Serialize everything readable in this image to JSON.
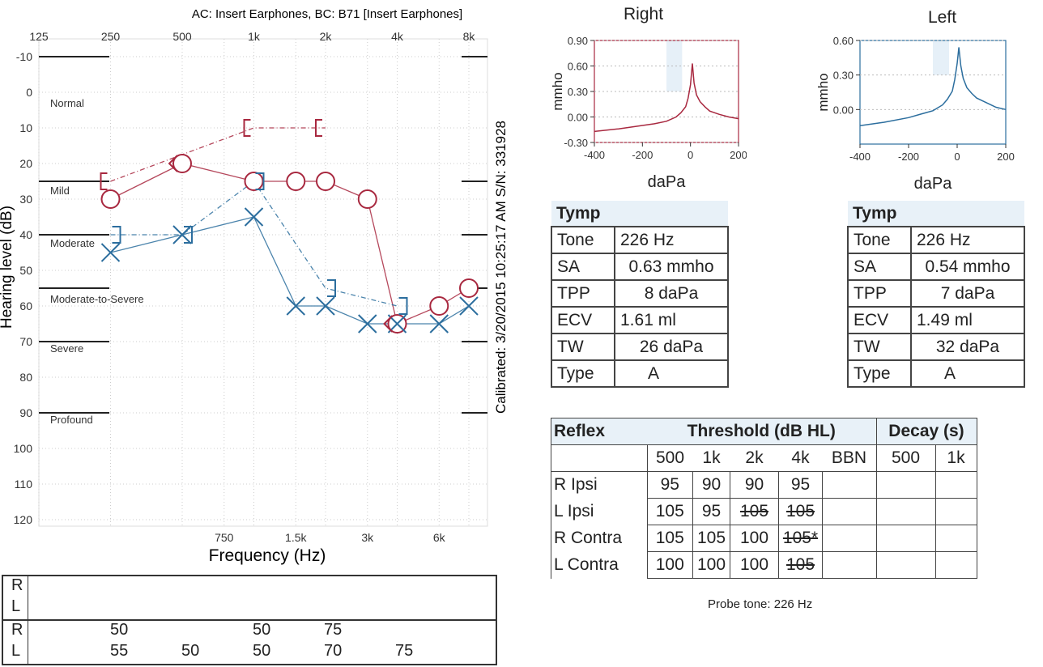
{
  "audiogram": {
    "header": "AC: Insert Earphones, BC: B71 [Insert Earphones]",
    "side_text": "Calibrated: 3/20/2015 10:25:17 AM  S/N: 331928",
    "ylabel": "Hearing level (dB)",
    "xlabel": "Frequency (Hz)",
    "top_ticks": [
      "125",
      "250",
      "500",
      "1k",
      "2k",
      "4k",
      "8k"
    ],
    "bottom_ticks": [
      "750",
      "1.5k",
      "3k",
      "6k"
    ],
    "y_ticks": [
      "-10",
      "0",
      "10",
      "20",
      "30",
      "40",
      "50",
      "60",
      "70",
      "80",
      "90",
      "100",
      "110",
      "120"
    ],
    "categories": [
      "Normal",
      "Mild",
      "Moderate",
      "Moderate-to-Severe",
      "Severe",
      "Profound"
    ],
    "colors": {
      "right": "#a8283f",
      "left": "#2c6e9e"
    }
  },
  "chart_data": [
    {
      "type": "line",
      "title": "",
      "xlabel": "Frequency (Hz)",
      "ylabel": "Hearing level (dB)",
      "x_scale": "log",
      "ylim": [
        120,
        -10
      ],
      "series": [
        {
          "name": "",
          "symbol": "circle",
          "ear": "right",
          "x": [
            250,
            500,
            1000,
            1500,
            2000,
            3000,
            4000,
            6000,
            8000
          ],
          "y": [
            30,
            20,
            25,
            25,
            25,
            30,
            65,
            60,
            55
          ]
        },
        {
          "name": "",
          "symbol": "cross",
          "ear": "left",
          "x": [
            250,
            500,
            1000,
            1500,
            2000,
            3000,
            4000,
            6000,
            8000
          ],
          "y": [
            45,
            40,
            35,
            60,
            60,
            65,
            65,
            65,
            60
          ]
        },
        {
          "name": "",
          "symbol": "right-bracket",
          "ear": "right",
          "x": [
            250,
            1000,
            2000
          ],
          "y": [
            25,
            10,
            10
          ]
        },
        {
          "name": "",
          "symbol": "left-bracket",
          "ear": "left",
          "x": [
            250,
            500,
            1000,
            2000,
            4000
          ],
          "y": [
            40,
            40,
            25,
            55,
            60
          ]
        },
        {
          "name": "",
          "symbol": "right-arrow",
          "ear": "right",
          "x": [
            500,
            4000
          ],
          "y": [
            20,
            65
          ]
        }
      ]
    },
    {
      "type": "line",
      "title": "Right",
      "xlabel": "daPa",
      "ylabel": "mmho",
      "xlim": [
        -400,
        200
      ],
      "ylim": [
        -0.3,
        0.9
      ],
      "x_ticks": [
        "-400",
        "-200",
        "0",
        "200"
      ],
      "y_ticks": [
        "0.90",
        "0.60",
        "0.30",
        "0.00",
        "-0.30"
      ],
      "series": [
        {
          "name": "",
          "x": [
            -400,
            -300,
            -200,
            -150,
            -100,
            -60,
            -40,
            -20,
            -10,
            0,
            8,
            15,
            25,
            40,
            60,
            80,
            120,
            160,
            200
          ],
          "y": [
            -0.17,
            -0.14,
            -0.1,
            -0.08,
            -0.05,
            0.0,
            0.05,
            0.12,
            0.22,
            0.38,
            0.63,
            0.4,
            0.26,
            0.18,
            0.12,
            0.07,
            0.03,
            0.0,
            -0.02
          ]
        }
      ]
    },
    {
      "type": "line",
      "title": "Left",
      "xlabel": "daPa",
      "ylabel": "mmho",
      "xlim": [
        -400,
        200
      ],
      "ylim": [
        -0.3,
        0.6
      ],
      "x_ticks": [
        "-400",
        "-200",
        "0",
        "200"
      ],
      "y_ticks": [
        "0.60",
        "0.30",
        "0.00"
      ],
      "series": [
        {
          "name": "",
          "x": [
            -400,
            -300,
            -200,
            -150,
            -100,
            -60,
            -40,
            -20,
            -10,
            0,
            7,
            15,
            25,
            40,
            60,
            80,
            120,
            160,
            200
          ],
          "y": [
            -0.14,
            -0.11,
            -0.07,
            -0.04,
            -0.01,
            0.04,
            0.09,
            0.16,
            0.26,
            0.4,
            0.54,
            0.38,
            0.27,
            0.19,
            0.14,
            0.1,
            0.06,
            0.02,
            0.0
          ]
        }
      ]
    }
  ],
  "tymp_right": {
    "title": "Tymp",
    "rows": [
      {
        "label": "Tone",
        "value": "226 Hz"
      },
      {
        "label": "SA",
        "value": "0.63 mmho"
      },
      {
        "label": "TPP",
        "value": "8 daPa"
      },
      {
        "label": "ECV",
        "value": "1.61 ml"
      },
      {
        "label": "TW",
        "value": "26 daPa"
      },
      {
        "label": "Type",
        "value": "A"
      }
    ]
  },
  "tymp_left": {
    "title": "Tymp",
    "rows": [
      {
        "label": "Tone",
        "value": "226 Hz"
      },
      {
        "label": "SA",
        "value": "0.54 mmho"
      },
      {
        "label": "TPP",
        "value": "7 daPa"
      },
      {
        "label": "ECV",
        "value": "1.49 ml"
      },
      {
        "label": "TW",
        "value": "32 daPa"
      },
      {
        "label": "Type",
        "value": "A"
      }
    ]
  },
  "reflex": {
    "h_reflex": "Reflex",
    "h_threshold": "Threshold (dB HL)",
    "h_decay": "Decay (s)",
    "freqs": [
      "500",
      "1k",
      "2k",
      "4k",
      "BBN"
    ],
    "decay_freqs": [
      "500",
      "1k"
    ],
    "rows": [
      {
        "label": "R Ipsi",
        "v": [
          "95",
          "90",
          "90",
          "95",
          ""
        ],
        "strike": [
          false,
          false,
          false,
          false,
          false
        ]
      },
      {
        "label": "L Ipsi",
        "v": [
          "105",
          "95",
          "105",
          "105",
          ""
        ],
        "strike": [
          false,
          false,
          true,
          true,
          false
        ]
      },
      {
        "label": "R Contra",
        "v": [
          "105",
          "105",
          "100",
          "105*",
          ""
        ],
        "strike": [
          false,
          false,
          false,
          true,
          false
        ]
      },
      {
        "label": "L Contra",
        "v": [
          "100",
          "100",
          "100",
          "105",
          ""
        ],
        "strike": [
          false,
          false,
          false,
          true,
          false
        ]
      }
    ],
    "probe_tone": "Probe tone: 226 Hz"
  },
  "bottom_table": {
    "ears": [
      "R",
      "L",
      "R",
      "L"
    ],
    "r_values": [
      "50",
      "50",
      "75"
    ],
    "l_values": [
      "55",
      "50",
      "50",
      "70",
      "75"
    ]
  }
}
